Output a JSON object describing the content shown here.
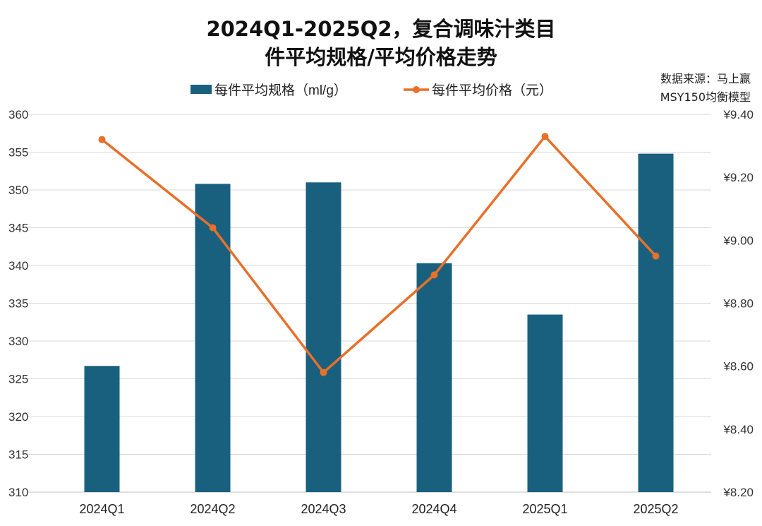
{
  "chart_data": {
    "type": "bar+line",
    "title_line1": "2024Q1-2025Q2，复合调味汁类目",
    "title_line2": "件平均规格/平均价格走势",
    "source_line1": "数据来源：马上赢",
    "source_line2": "MSY150均衡模型",
    "categories": [
      "2024Q1",
      "2024Q2",
      "2024Q3",
      "2024Q4",
      "2025Q1",
      "2025Q2"
    ],
    "series": [
      {
        "name": "每件平均规格（ml/g）",
        "type": "bar",
        "axis": "left",
        "color": "#19607F",
        "values": [
          326.7,
          350.8,
          351.0,
          340.3,
          333.5,
          354.8
        ]
      },
      {
        "name": "每件平均价格（元）",
        "type": "line",
        "axis": "right",
        "color": "#E8702A",
        "values": [
          9.32,
          9.04,
          8.58,
          8.89,
          9.33,
          8.95
        ]
      }
    ],
    "left_axis": {
      "ylim": [
        310,
        360
      ],
      "ticks": [
        "310",
        "315",
        "320",
        "325",
        "330",
        "335",
        "340",
        "345",
        "350",
        "355",
        "360"
      ]
    },
    "right_axis": {
      "ylim": [
        8.2,
        9.4
      ],
      "ticks": [
        "¥8.20",
        "¥8.40",
        "¥8.60",
        "¥8.80",
        "¥9.00",
        "¥9.20",
        "¥9.40"
      ]
    },
    "grid": true,
    "legend": "top"
  }
}
